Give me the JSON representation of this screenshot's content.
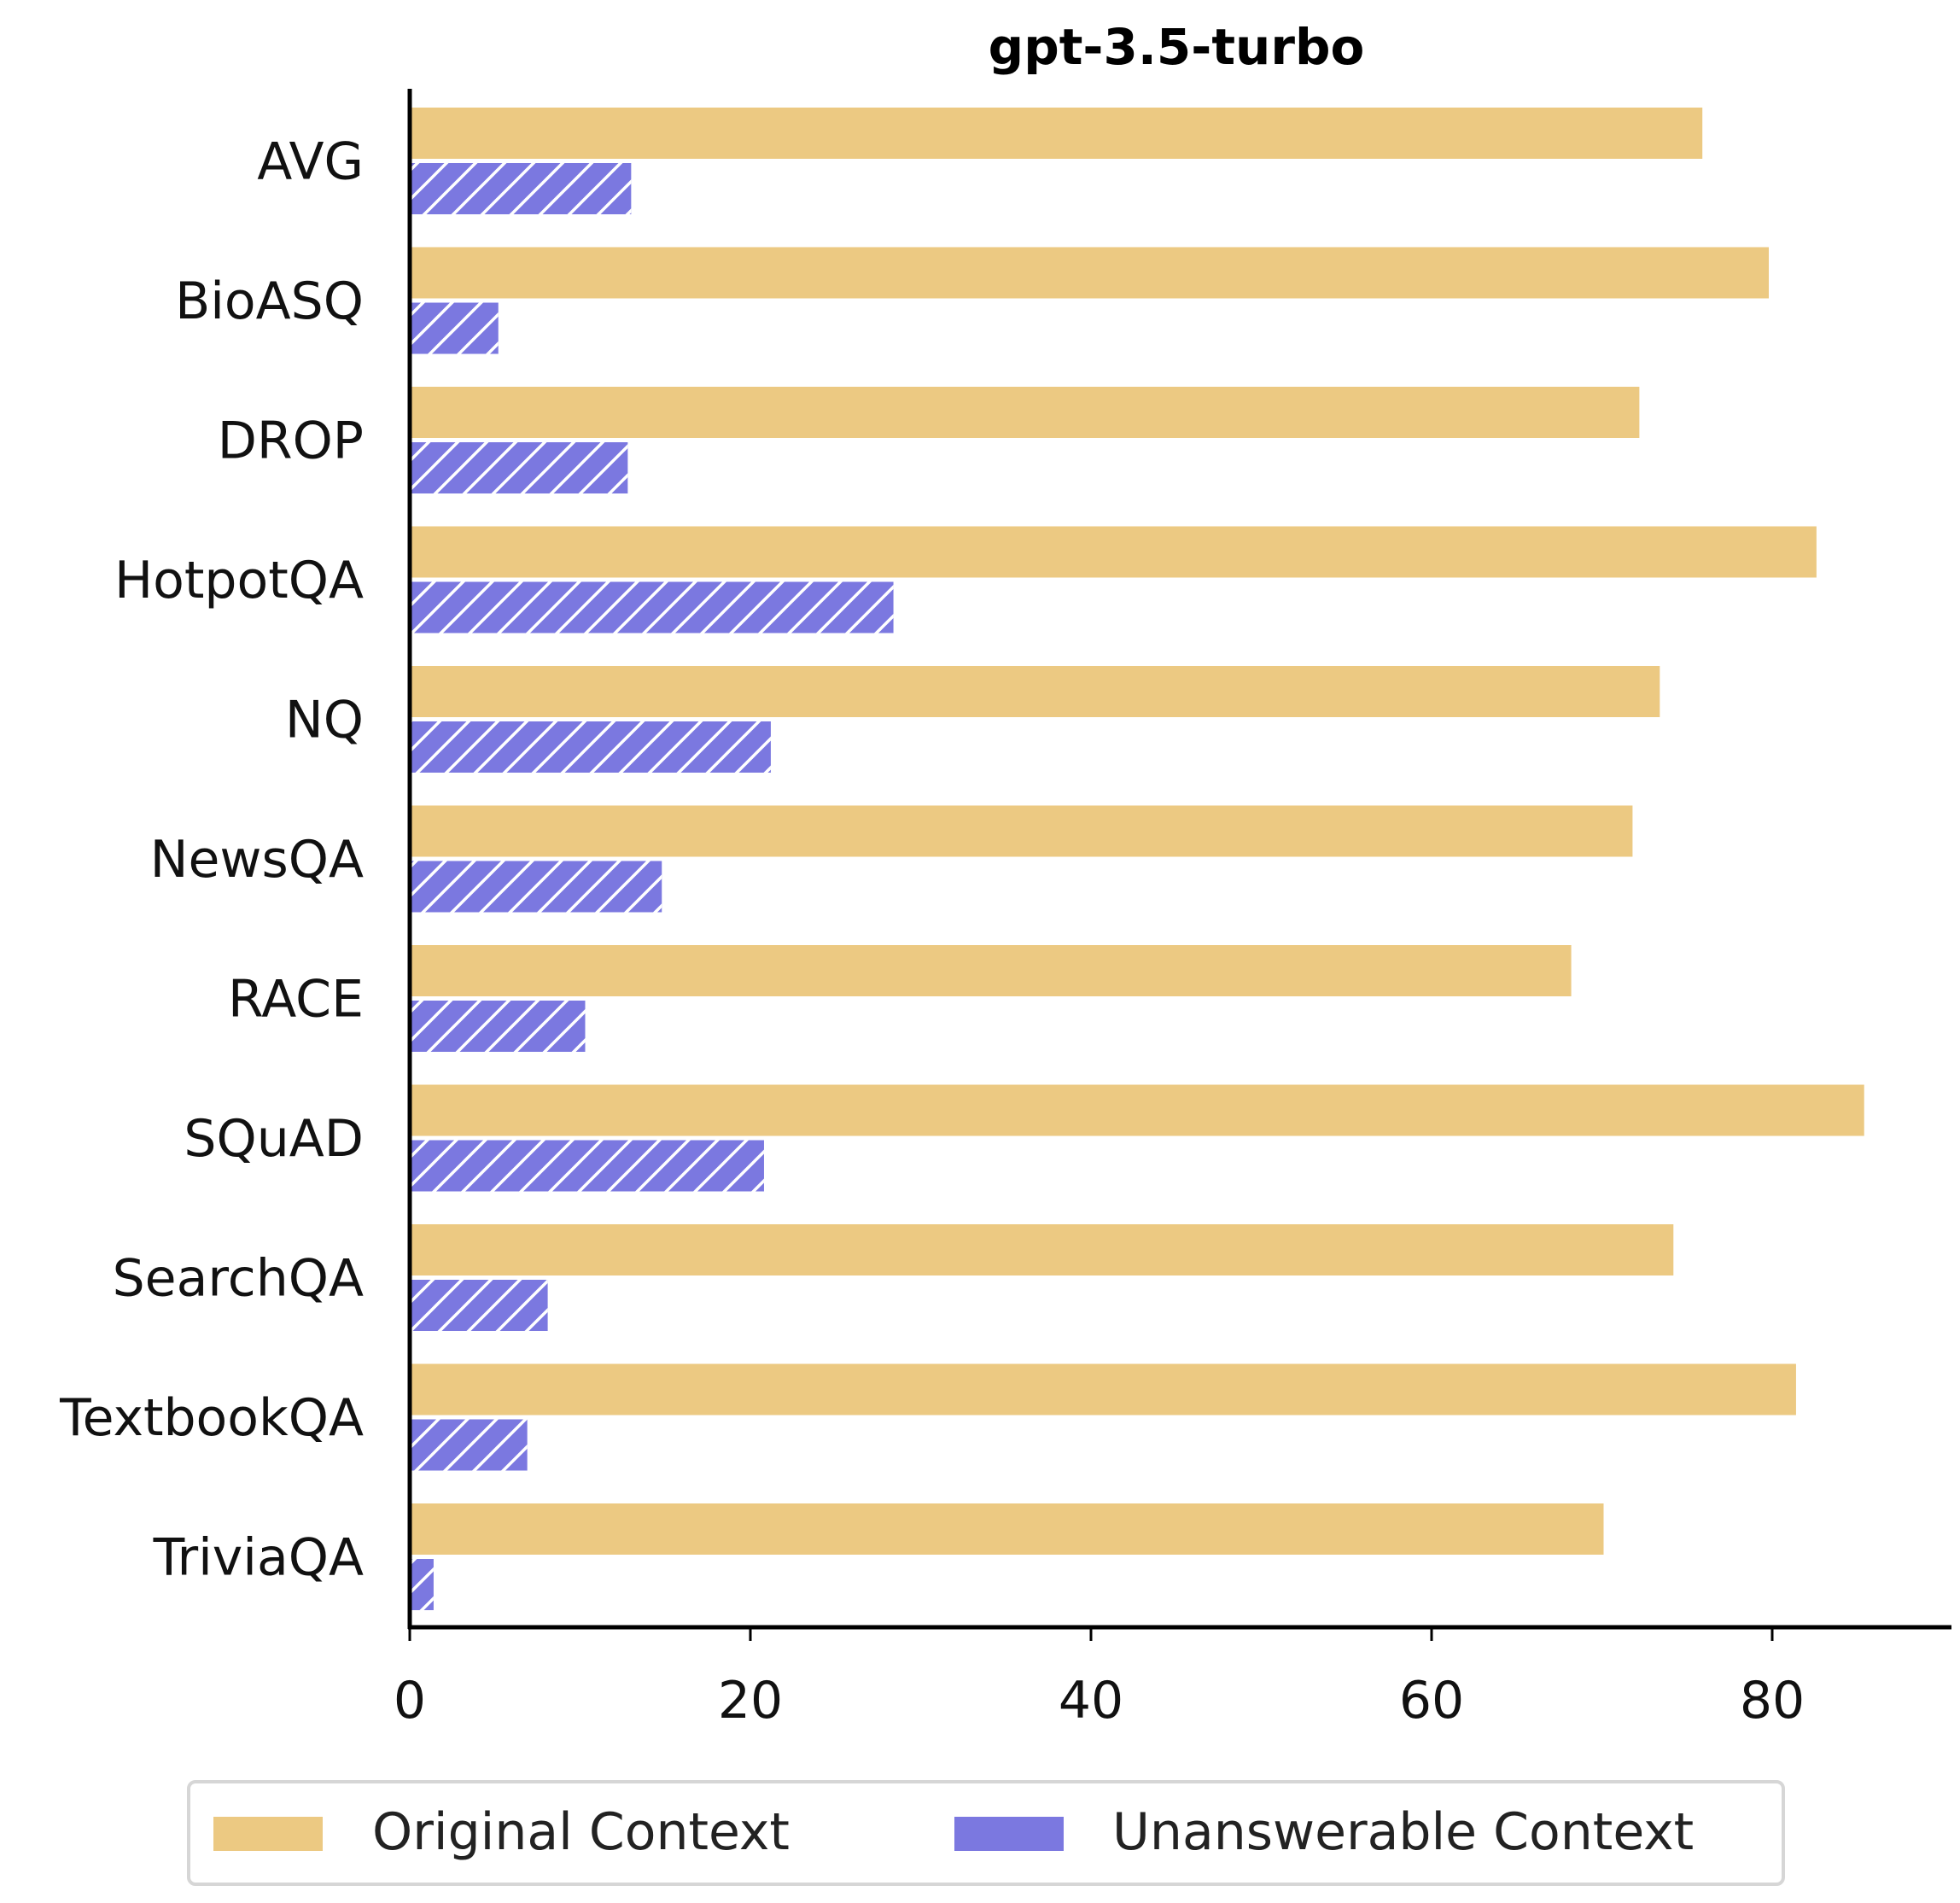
{
  "chart_data": {
    "type": "bar",
    "orientation": "horizontal",
    "title": "gpt-3.5-turbo",
    "xlabel": "",
    "ylabel": "",
    "xlim": [
      0,
      90
    ],
    "xticks": [
      0,
      20,
      40,
      60,
      80
    ],
    "grid": false,
    "legend_position": "bottom",
    "categories": [
      "AVG",
      "BioASQ",
      "DROP",
      "HotpotQA",
      "NQ",
      "NewsQA",
      "RACE",
      "SQuAD",
      "SearchQA",
      "TextbookQA",
      "TriviaQA"
    ],
    "series": [
      {
        "name": "Original Context",
        "color": "#ecc982",
        "hatch": false,
        "values": [
          75.9,
          79.8,
          72.2,
          82.6,
          73.4,
          71.8,
          68.2,
          85.4,
          74.2,
          81.4,
          70.1
        ]
      },
      {
        "name": "Unanswerable Context",
        "color": "#7b78e0",
        "hatch": true,
        "values": [
          13.0,
          5.2,
          12.8,
          28.4,
          21.2,
          14.8,
          10.3,
          20.8,
          8.1,
          6.9,
          1.4
        ]
      }
    ]
  }
}
